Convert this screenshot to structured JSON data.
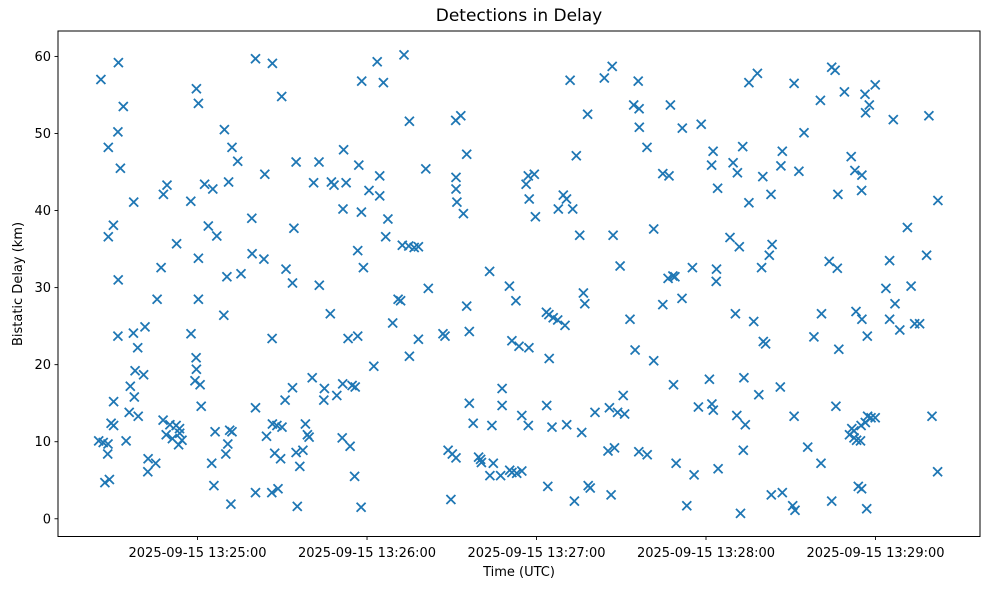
{
  "window": {
    "title": "Detections in Delay"
  },
  "chart_data": {
    "type": "scatter",
    "title": "Detections in Delay",
    "xlabel": "Time (UTC)",
    "ylabel": "Bistatic Delay (km)",
    "marker": "x",
    "marker_color": "#1f77b4",
    "axes_color": "#000000",
    "grid": false,
    "legend": null,
    "x_axis": {
      "unit": "seconds after 2025-09-15 13:24:00 UTC",
      "lim": [
        10.6,
        337.0
      ],
      "ticks": [
        {
          "value": 60,
          "label": "2025-09-15 13:25:00"
        },
        {
          "value": 120,
          "label": "2025-09-15 13:26:00"
        },
        {
          "value": 180,
          "label": "2025-09-15 13:27:00"
        },
        {
          "value": 240,
          "label": "2025-09-15 13:28:00"
        },
        {
          "value": 300,
          "label": "2025-09-15 13:29:00"
        }
      ]
    },
    "y_axis": {
      "unit": "km",
      "lim": [
        -2.3,
        63.3
      ],
      "ticks": [
        {
          "value": 0,
          "label": "0"
        },
        {
          "value": 10,
          "label": "10"
        },
        {
          "value": 20,
          "label": "20"
        },
        {
          "value": 30,
          "label": "30"
        },
        {
          "value": 40,
          "label": "40"
        },
        {
          "value": 50,
          "label": "50"
        },
        {
          "value": 60,
          "label": "60"
        }
      ]
    },
    "points": [
      [
        32.0,
        59.2
      ],
      [
        25.8,
        57.0
      ],
      [
        33.7,
        53.5
      ],
      [
        59.6,
        55.8
      ],
      [
        60.3,
        53.9
      ],
      [
        80.5,
        59.7
      ],
      [
        86.5,
        59.1
      ],
      [
        89.8,
        54.8
      ],
      [
        118.1,
        56.8
      ],
      [
        31.8,
        50.2
      ],
      [
        28.4,
        48.2
      ],
      [
        69.5,
        50.5
      ],
      [
        72.2,
        48.2
      ],
      [
        74.2,
        46.4
      ],
      [
        32.7,
        45.5
      ],
      [
        83.8,
        44.7
      ],
      [
        94.9,
        46.3
      ],
      [
        103.0,
        46.3
      ],
      [
        117.1,
        45.9
      ],
      [
        111.7,
        47.9
      ],
      [
        101.1,
        43.6
      ],
      [
        107.4,
        43.7
      ],
      [
        108.3,
        43.3
      ],
      [
        112.6,
        43.6
      ],
      [
        49.2,
        43.3
      ],
      [
        47.9,
        42.1
      ],
      [
        62.5,
        43.4
      ],
      [
        65.4,
        42.8
      ],
      [
        71.0,
        43.7
      ],
      [
        57.6,
        41.2
      ],
      [
        37.4,
        41.1
      ],
      [
        111.5,
        40.2
      ],
      [
        118.0,
        39.8
      ],
      [
        30.2,
        38.1
      ],
      [
        28.4,
        36.6
      ],
      [
        63.8,
        38.0
      ],
      [
        66.8,
        36.7
      ],
      [
        79.2,
        39.0
      ],
      [
        94.1,
        37.7
      ],
      [
        52.6,
        35.7
      ],
      [
        60.3,
        33.8
      ],
      [
        79.3,
        34.4
      ],
      [
        83.5,
        33.7
      ],
      [
        47.1,
        32.6
      ],
      [
        91.3,
        32.4
      ],
      [
        116.7,
        34.8
      ],
      [
        118.7,
        32.6
      ],
      [
        70.4,
        31.4
      ],
      [
        75.4,
        31.8
      ],
      [
        133.1,
        60.2
      ],
      [
        123.6,
        59.3
      ],
      [
        125.8,
        56.6
      ],
      [
        191.9,
        56.9
      ],
      [
        204.0,
        57.2
      ],
      [
        206.8,
        58.7
      ],
      [
        216.0,
        56.8
      ],
      [
        214.4,
        53.7
      ],
      [
        216.3,
        53.2
      ],
      [
        227.4,
        53.7
      ],
      [
        198.1,
        52.5
      ],
      [
        135.0,
        51.6
      ],
      [
        151.4,
        51.7
      ],
      [
        153.2,
        52.3
      ],
      [
        216.4,
        50.8
      ],
      [
        219.1,
        48.2
      ],
      [
        155.3,
        47.3
      ],
      [
        194.1,
        47.1
      ],
      [
        140.8,
        45.4
      ],
      [
        124.5,
        44.5
      ],
      [
        120.7,
        42.6
      ],
      [
        124.5,
        41.9
      ],
      [
        151.5,
        44.3
      ],
      [
        151.5,
        42.8
      ],
      [
        151.8,
        41.1
      ],
      [
        154.1,
        39.6
      ],
      [
        177.1,
        44.5
      ],
      [
        179.2,
        44.7
      ],
      [
        176.3,
        43.4
      ],
      [
        177.4,
        41.5
      ],
      [
        179.6,
        39.2
      ],
      [
        189.5,
        42.0
      ],
      [
        187.7,
        40.2
      ],
      [
        190.6,
        41.5
      ],
      [
        192.8,
        40.2
      ],
      [
        224.7,
        44.8
      ],
      [
        226.9,
        44.5
      ],
      [
        127.4,
        38.9
      ],
      [
        126.6,
        36.6
      ],
      [
        132.5,
        35.5
      ],
      [
        134.8,
        35.4
      ],
      [
        136.7,
        35.2
      ],
      [
        138.2,
        35.3
      ],
      [
        195.3,
        36.8
      ],
      [
        207.1,
        36.8
      ],
      [
        221.5,
        37.6
      ],
      [
        163.4,
        32.1
      ],
      [
        209.6,
        32.8
      ],
      [
        229.0,
        31.4
      ],
      [
        258.2,
        57.8
      ],
      [
        255.2,
        56.6
      ],
      [
        284.5,
        58.6
      ],
      [
        285.7,
        58.2
      ],
      [
        271.2,
        56.5
      ],
      [
        299.9,
        56.3
      ],
      [
        289.0,
        55.4
      ],
      [
        296.3,
        55.1
      ],
      [
        297.8,
        53.7
      ],
      [
        280.5,
        54.3
      ],
      [
        296.5,
        52.7
      ],
      [
        306.3,
        51.8
      ],
      [
        318.9,
        52.3
      ],
      [
        231.6,
        50.7
      ],
      [
        238.3,
        51.2
      ],
      [
        274.7,
        50.1
      ],
      [
        242.5,
        47.7
      ],
      [
        253.0,
        48.3
      ],
      [
        242.0,
        45.9
      ],
      [
        249.6,
        46.2
      ],
      [
        251.1,
        44.9
      ],
      [
        267.0,
        47.7
      ],
      [
        266.5,
        45.8
      ],
      [
        272.9,
        45.1
      ],
      [
        260.1,
        44.4
      ],
      [
        291.4,
        47.0
      ],
      [
        292.7,
        45.2
      ],
      [
        295.2,
        44.6
      ],
      [
        244.1,
        42.9
      ],
      [
        263.0,
        42.1
      ],
      [
        255.2,
        41.0
      ],
      [
        286.7,
        42.1
      ],
      [
        295.1,
        42.6
      ],
      [
        322.1,
        41.3
      ],
      [
        311.3,
        37.8
      ],
      [
        248.5,
        36.5
      ],
      [
        251.8,
        35.3
      ],
      [
        263.4,
        35.6
      ],
      [
        262.4,
        34.2
      ],
      [
        283.6,
        33.4
      ],
      [
        286.5,
        32.5
      ],
      [
        305.0,
        33.5
      ],
      [
        318.1,
        34.2
      ],
      [
        235.2,
        32.6
      ],
      [
        243.7,
        32.4
      ],
      [
        259.7,
        32.6
      ],
      [
        31.9,
        31.0
      ],
      [
        93.6,
        30.6
      ],
      [
        103.1,
        30.3
      ],
      [
        45.7,
        28.5
      ],
      [
        60.3,
        28.5
      ],
      [
        69.3,
        26.4
      ],
      [
        107.0,
        26.6
      ],
      [
        41.4,
        24.9
      ],
      [
        31.8,
        23.7
      ],
      [
        37.3,
        24.1
      ],
      [
        38.8,
        22.2
      ],
      [
        57.7,
        24.0
      ],
      [
        86.4,
        23.4
      ],
      [
        113.3,
        23.4
      ],
      [
        116.7,
        23.7
      ],
      [
        59.5,
        20.9
      ],
      [
        59.6,
        19.4
      ],
      [
        59.1,
        17.9
      ],
      [
        60.9,
        17.4
      ],
      [
        37.9,
        19.2
      ],
      [
        40.9,
        18.7
      ],
      [
        36.2,
        17.2
      ],
      [
        37.6,
        15.8
      ],
      [
        30.3,
        15.2
      ],
      [
        61.3,
        14.6
      ],
      [
        80.5,
        14.4
      ],
      [
        100.6,
        18.3
      ],
      [
        93.6,
        17.0
      ],
      [
        104.9,
        16.9
      ],
      [
        111.4,
        17.5
      ],
      [
        114.7,
        17.3
      ],
      [
        115.8,
        17.1
      ],
      [
        109.3,
        16.0
      ],
      [
        104.7,
        15.4
      ],
      [
        91.0,
        15.4
      ],
      [
        35.8,
        13.8
      ],
      [
        39.0,
        13.3
      ],
      [
        29.4,
        12.4
      ],
      [
        30.3,
        12.1
      ],
      [
        47.8,
        12.8
      ],
      [
        50.2,
        12.2
      ],
      [
        52.4,
        12.1
      ],
      [
        53.6,
        11.7
      ],
      [
        48.9,
        10.9
      ],
      [
        51.1,
        10.4
      ],
      [
        53.7,
        11.1
      ],
      [
        54.5,
        10.2
      ],
      [
        53.3,
        9.6
      ],
      [
        25.0,
        10.1
      ],
      [
        26.6,
        9.9
      ],
      [
        28.3,
        9.7
      ],
      [
        34.7,
        10.1
      ],
      [
        66.2,
        11.3
      ],
      [
        71.4,
        11.5
      ],
      [
        72.2,
        11.3
      ],
      [
        70.7,
        9.7
      ],
      [
        84.4,
        10.7
      ],
      [
        86.5,
        12.3
      ],
      [
        88.1,
        12.1
      ],
      [
        89.9,
        11.9
      ],
      [
        98.2,
        12.3
      ],
      [
        98.9,
        10.9
      ],
      [
        99.5,
        10.6
      ],
      [
        111.2,
        10.5
      ],
      [
        114.0,
        9.4
      ],
      [
        28.2,
        8.4
      ],
      [
        70.0,
        8.4
      ],
      [
        42.5,
        7.8
      ],
      [
        45.2,
        7.2
      ],
      [
        65.0,
        7.2
      ],
      [
        87.3,
        8.5
      ],
      [
        89.4,
        7.8
      ],
      [
        94.9,
        8.6
      ],
      [
        97.3,
        8.9
      ],
      [
        96.2,
        6.8
      ],
      [
        42.4,
        6.1
      ],
      [
        27.2,
        4.7
      ],
      [
        28.8,
        5.1
      ],
      [
        115.6,
        5.5
      ],
      [
        65.8,
        4.3
      ],
      [
        80.5,
        3.4
      ],
      [
        86.3,
        3.4
      ],
      [
        88.5,
        3.9
      ],
      [
        71.8,
        1.9
      ],
      [
        95.3,
        1.6
      ],
      [
        117.9,
        1.5
      ],
      [
        141.7,
        29.9
      ],
      [
        131.0,
        28.5
      ],
      [
        131.9,
        28.3
      ],
      [
        155.3,
        27.6
      ],
      [
        170.4,
        30.2
      ],
      [
        172.7,
        28.3
      ],
      [
        129.1,
        25.4
      ],
      [
        138.2,
        23.3
      ],
      [
        146.9,
        24.0
      ],
      [
        147.6,
        23.7
      ],
      [
        156.2,
        24.3
      ],
      [
        135.0,
        21.1
      ],
      [
        122.4,
        19.8
      ],
      [
        183.5,
        26.8
      ],
      [
        184.4,
        26.5
      ],
      [
        185.9,
        26.1
      ],
      [
        187.5,
        25.8
      ],
      [
        190.1,
        25.1
      ],
      [
        196.6,
        29.3
      ],
      [
        197.1,
        27.9
      ],
      [
        171.3,
        23.1
      ],
      [
        173.8,
        22.4
      ],
      [
        177.3,
        22.2
      ],
      [
        184.5,
        20.8
      ],
      [
        213.1,
        25.9
      ],
      [
        224.7,
        27.8
      ],
      [
        226.6,
        31.2
      ],
      [
        228.3,
        31.5
      ],
      [
        214.9,
        21.9
      ],
      [
        221.5,
        20.5
      ],
      [
        228.5,
        17.4
      ],
      [
        167.8,
        16.9
      ],
      [
        167.8,
        14.7
      ],
      [
        156.2,
        15.0
      ],
      [
        157.6,
        12.4
      ],
      [
        164.2,
        12.1
      ],
      [
        174.8,
        13.4
      ],
      [
        177.1,
        12.1
      ],
      [
        183.6,
        14.7
      ],
      [
        185.5,
        11.9
      ],
      [
        190.7,
        12.2
      ],
      [
        196.0,
        11.2
      ],
      [
        200.7,
        13.8
      ],
      [
        205.8,
        14.4
      ],
      [
        210.7,
        16.0
      ],
      [
        208.7,
        13.8
      ],
      [
        211.2,
        13.6
      ],
      [
        148.7,
        8.9
      ],
      [
        150.2,
        8.4
      ],
      [
        151.5,
        7.9
      ],
      [
        159.5,
        8.0
      ],
      [
        160.2,
        7.7
      ],
      [
        160.5,
        7.3
      ],
      [
        164.7,
        7.2
      ],
      [
        163.5,
        5.6
      ],
      [
        167.3,
        5.6
      ],
      [
        170.5,
        6.3
      ],
      [
        171.3,
        6.0
      ],
      [
        173.0,
        5.9
      ],
      [
        174.8,
        6.2
      ],
      [
        184.0,
        4.2
      ],
      [
        193.4,
        2.3
      ],
      [
        198.3,
        4.3
      ],
      [
        199.0,
        4.0
      ],
      [
        206.4,
        3.1
      ],
      [
        205.3,
        8.8
      ],
      [
        207.6,
        9.2
      ],
      [
        216.2,
        8.7
      ],
      [
        219.2,
        8.3
      ],
      [
        149.7,
        2.5
      ],
      [
        243.6,
        30.8
      ],
      [
        231.5,
        28.6
      ],
      [
        250.4,
        26.6
      ],
      [
        256.9,
        25.6
      ],
      [
        260.3,
        23.0
      ],
      [
        261.1,
        22.7
      ],
      [
        280.9,
        26.6
      ],
      [
        278.2,
        23.6
      ],
      [
        287.0,
        22.0
      ],
      [
        293.1,
        26.9
      ],
      [
        295.2,
        25.9
      ],
      [
        297.1,
        23.7
      ],
      [
        303.7,
        29.9
      ],
      [
        312.6,
        30.2
      ],
      [
        306.9,
        27.9
      ],
      [
        305.0,
        25.9
      ],
      [
        308.6,
        24.5
      ],
      [
        313.9,
        25.3
      ],
      [
        315.6,
        25.3
      ],
      [
        241.2,
        18.1
      ],
      [
        253.4,
        18.3
      ],
      [
        258.7,
        16.1
      ],
      [
        266.3,
        17.1
      ],
      [
        237.3,
        14.5
      ],
      [
        242.1,
        14.9
      ],
      [
        242.6,
        14.1
      ],
      [
        250.9,
        13.4
      ],
      [
        253.9,
        12.2
      ],
      [
        271.2,
        13.3
      ],
      [
        286.0,
        14.6
      ],
      [
        297.2,
        13.3
      ],
      [
        298.4,
        13.1
      ],
      [
        299.9,
        13.1
      ],
      [
        294.9,
        12.1
      ],
      [
        296.4,
        12.5
      ],
      [
        291.6,
        11.7
      ],
      [
        292.4,
        11.4
      ],
      [
        290.8,
        10.9
      ],
      [
        292.4,
        10.5
      ],
      [
        293.3,
        10.2
      ],
      [
        294.7,
        10.1
      ],
      [
        320.0,
        13.3
      ],
      [
        253.2,
        8.9
      ],
      [
        276.0,
        9.3
      ],
      [
        280.7,
        7.2
      ],
      [
        229.4,
        7.2
      ],
      [
        235.8,
        5.7
      ],
      [
        244.3,
        6.5
      ],
      [
        322.0,
        6.1
      ],
      [
        293.9,
        4.2
      ],
      [
        295.1,
        3.9
      ],
      [
        263.1,
        3.1
      ],
      [
        267.0,
        3.4
      ],
      [
        270.7,
        1.7
      ],
      [
        271.5,
        1.1
      ],
      [
        284.5,
        2.3
      ],
      [
        296.9,
        1.3
      ],
      [
        233.2,
        1.7
      ],
      [
        252.2,
        0.7
      ]
    ]
  }
}
